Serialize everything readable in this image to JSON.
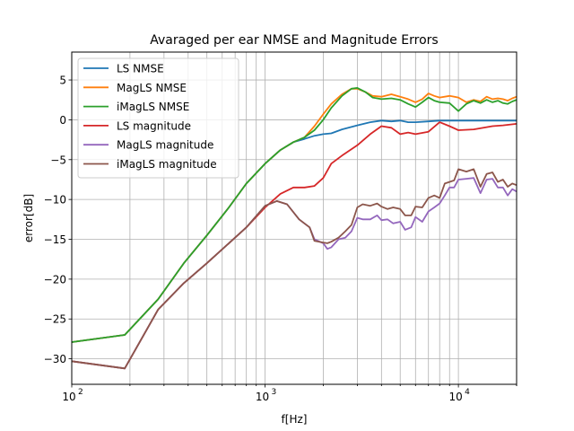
{
  "chart_data": {
    "type": "line",
    "title": "Avaraged per ear NMSE and Magnitude Errors",
    "xlabel": "f[Hz]",
    "ylabel": "error[dB]",
    "x_scale": "log",
    "xlim": [
      100,
      20000
    ],
    "ylim": [
      -33.2,
      8.5
    ],
    "grid": "on (major and minor on x, major on y)",
    "legend_position": "upper left",
    "y_ticks": [
      5,
      0,
      -5,
      -10,
      -15,
      -20,
      -25,
      -30
    ],
    "y_tick_labels": [
      "5",
      "0",
      "−5",
      "−10",
      "−15",
      "−20",
      "−25",
      "−30"
    ],
    "x_ticks": [
      {
        "value": 100,
        "base": "10",
        "exp": "2"
      },
      {
        "value": 1000,
        "base": "10",
        "exp": "3"
      },
      {
        "value": 10000,
        "base": "10",
        "exp": "4"
      }
    ],
    "colors": {
      "ls_nmse": "#1f77b4",
      "magls_nmse": "#ff7f0e",
      "imagls_nmse": "#2ca02c",
      "ls_mag": "#d62728",
      "magls_mag": "#9467bd",
      "imagls_mag": "#8c564b"
    },
    "series": [
      {
        "name": "LS NMSE",
        "color": "#1f77b4",
        "x": [
          100,
          188,
          280,
          380,
          500,
          650,
          800,
          1000,
          1200,
          1400,
          1600,
          1800,
          2000,
          2200,
          2500,
          3000,
          3500,
          4000,
          4500,
          5000,
          5500,
          6000,
          7000,
          8000,
          9000,
          10000,
          12000,
          15000,
          20000
        ],
        "y": [
          -27.9,
          -27.0,
          -22.5,
          -18.0,
          -14.5,
          -11.0,
          -8.0,
          -5.5,
          -3.8,
          -2.8,
          -2.4,
          -2.0,
          -1.8,
          -1.7,
          -1.2,
          -0.7,
          -0.3,
          -0.1,
          -0.2,
          -0.1,
          -0.3,
          -0.3,
          -0.2,
          -0.1,
          -0.1,
          -0.1,
          -0.1,
          -0.1,
          -0.1
        ]
      },
      {
        "name": "MagLS NMSE",
        "color": "#ff7f0e",
        "x": [
          100,
          188,
          280,
          380,
          500,
          650,
          800,
          1000,
          1200,
          1400,
          1600,
          1800,
          2000,
          2200,
          2500,
          2800,
          3000,
          3300,
          3600,
          4000,
          4500,
          5000,
          5500,
          6000,
          6500,
          7000,
          7500,
          8000,
          9000,
          10000,
          11000,
          12000,
          13000,
          14000,
          15000,
          16000,
          17000,
          18000,
          19000,
          20000
        ],
        "y": [
          -27.9,
          -27.0,
          -22.5,
          -18.0,
          -14.5,
          -11.0,
          -8.0,
          -5.5,
          -3.8,
          -2.8,
          -2.2,
          -0.8,
          0.7,
          2.0,
          3.2,
          3.9,
          3.9,
          3.5,
          3.0,
          2.9,
          3.2,
          2.9,
          2.6,
          2.2,
          2.6,
          3.3,
          3.0,
          2.8,
          3.0,
          2.8,
          2.2,
          2.5,
          2.3,
          2.9,
          2.6,
          2.7,
          2.6,
          2.4,
          2.7,
          2.9
        ]
      },
      {
        "name": "iMagLS NMSE",
        "color": "#2ca02c",
        "x": [
          100,
          188,
          280,
          380,
          500,
          650,
          800,
          1000,
          1200,
          1400,
          1600,
          1800,
          2000,
          2200,
          2500,
          2800,
          3000,
          3300,
          3600,
          4000,
          4500,
          5000,
          5500,
          6000,
          6500,
          7000,
          7500,
          8000,
          9000,
          10000,
          11000,
          12000,
          13000,
          14000,
          15000,
          16000,
          17000,
          18000,
          19000,
          20000
        ],
        "y": [
          -27.9,
          -27.0,
          -22.5,
          -18.0,
          -14.5,
          -11.0,
          -8.0,
          -5.5,
          -3.8,
          -2.8,
          -2.2,
          -1.3,
          0.0,
          1.5,
          3.0,
          3.9,
          4.0,
          3.5,
          2.8,
          2.6,
          2.7,
          2.5,
          2.0,
          1.6,
          2.2,
          2.8,
          2.4,
          2.2,
          2.1,
          1.1,
          2.0,
          2.4,
          2.1,
          2.5,
          2.2,
          2.4,
          2.1,
          2.0,
          2.3,
          2.5
        ]
      },
      {
        "name": "LS magnitude",
        "color": "#d62728",
        "x": [
          100,
          188,
          280,
          380,
          500,
          650,
          800,
          1000,
          1200,
          1400,
          1600,
          1800,
          2000,
          2200,
          2500,
          3000,
          3500,
          4000,
          4500,
          5000,
          5500,
          6000,
          7000,
          8000,
          9000,
          10000,
          12000,
          15000,
          17000,
          20000
        ],
        "y": [
          -30.3,
          -31.2,
          -23.8,
          -20.5,
          -18.0,
          -15.5,
          -13.5,
          -11.0,
          -9.3,
          -8.5,
          -8.5,
          -8.3,
          -7.3,
          -5.5,
          -4.5,
          -3.2,
          -1.8,
          -0.8,
          -1.0,
          -1.8,
          -1.6,
          -1.8,
          -1.5,
          -0.3,
          -0.8,
          -1.3,
          -1.2,
          -0.8,
          -0.7,
          -0.5
        ]
      },
      {
        "name": "MagLS magnitude",
        "color": "#9467bd",
        "x": [
          100,
          188,
          280,
          380,
          500,
          650,
          800,
          1000,
          1150,
          1300,
          1500,
          1700,
          1800,
          2000,
          2100,
          2200,
          2400,
          2600,
          2800,
          3000,
          3200,
          3500,
          3800,
          4000,
          4300,
          4600,
          5000,
          5300,
          5700,
          6000,
          6500,
          7000,
          7500,
          8000,
          8500,
          9000,
          9500,
          10000,
          11000,
          12000,
          13000,
          14000,
          15000,
          16000,
          17000,
          18000,
          19000,
          20000
        ],
        "y": [
          -30.3,
          -31.2,
          -23.8,
          -20.5,
          -18.0,
          -15.5,
          -13.5,
          -10.8,
          -10.2,
          -10.6,
          -12.5,
          -13.5,
          -15.0,
          -15.5,
          -16.2,
          -16.0,
          -15.0,
          -14.8,
          -14.0,
          -12.3,
          -12.5,
          -12.5,
          -12.0,
          -12.6,
          -12.5,
          -13.0,
          -12.8,
          -13.8,
          -13.5,
          -12.2,
          -12.8,
          -11.5,
          -11.0,
          -10.5,
          -9.5,
          -8.5,
          -8.5,
          -7.5,
          -7.4,
          -7.3,
          -9.2,
          -7.5,
          -7.4,
          -8.5,
          -8.5,
          -9.5,
          -8.7,
          -9.0
        ]
      },
      {
        "name": "iMagLS magnitude",
        "color": "#8c564b",
        "x": [
          100,
          188,
          280,
          380,
          500,
          650,
          800,
          1000,
          1150,
          1300,
          1500,
          1700,
          1800,
          2000,
          2100,
          2200,
          2400,
          2600,
          2800,
          3000,
          3200,
          3500,
          3800,
          4000,
          4300,
          4600,
          5000,
          5300,
          5700,
          6000,
          6500,
          7000,
          7500,
          8000,
          8500,
          9000,
          9500,
          10000,
          11000,
          12000,
          13000,
          14000,
          15000,
          16000,
          17000,
          18000,
          19000,
          20000
        ],
        "y": [
          -30.3,
          -31.2,
          -23.8,
          -20.5,
          -18.0,
          -15.5,
          -13.5,
          -10.8,
          -10.2,
          -10.6,
          -12.5,
          -13.5,
          -15.2,
          -15.4,
          -15.5,
          -15.3,
          -14.8,
          -14.0,
          -13.2,
          -11.0,
          -10.6,
          -10.8,
          -10.5,
          -10.9,
          -11.2,
          -11.0,
          -11.2,
          -12.0,
          -12.0,
          -10.9,
          -11.0,
          -9.8,
          -9.5,
          -9.8,
          -8.0,
          -7.8,
          -7.6,
          -6.2,
          -6.5,
          -6.2,
          -8.4,
          -6.8,
          -6.6,
          -7.8,
          -7.5,
          -8.4,
          -8.0,
          -8.2
        ]
      }
    ]
  }
}
